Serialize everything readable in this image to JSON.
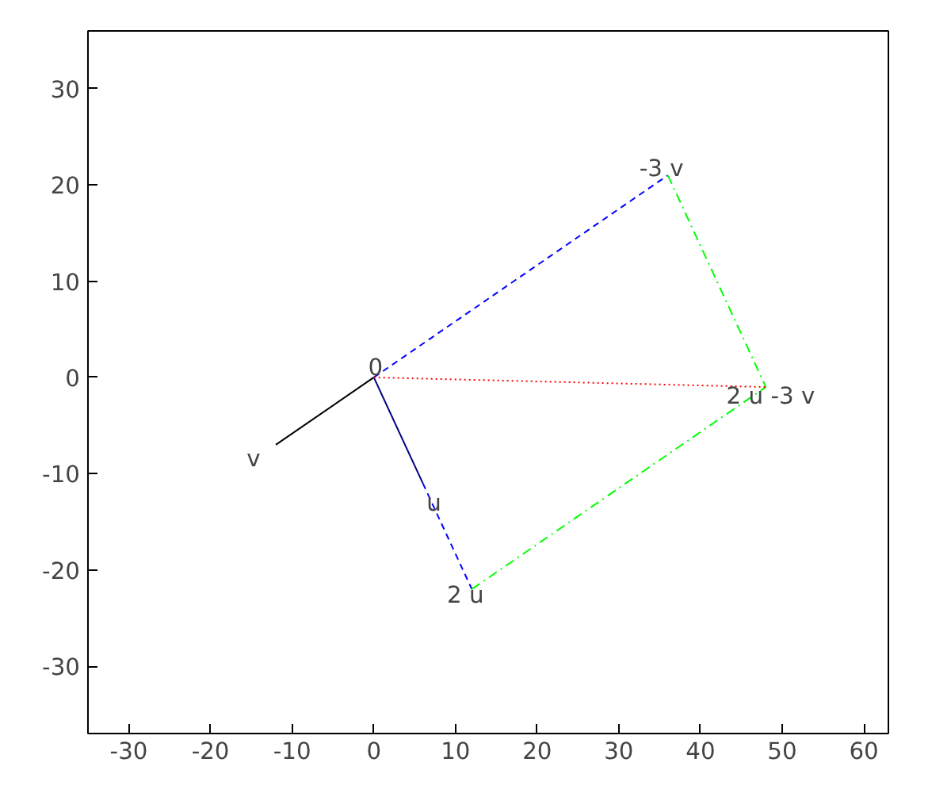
{
  "chart_data": {
    "type": "line",
    "xlim": [
      -35,
      63
    ],
    "ylim": [
      -37,
      36
    ],
    "xticks": [
      -30,
      -20,
      -10,
      0,
      10,
      20,
      30,
      40,
      50,
      60
    ],
    "yticks": [
      -30,
      -20,
      -10,
      0,
      10,
      20,
      30
    ],
    "grid": false,
    "series": [
      {
        "color": "#000000",
        "x": [
          0,
          -12
        ],
        "values": [
          0,
          -7
        ],
        "line_style": "solid"
      },
      {
        "color": "#000080",
        "x": [
          0,
          6
        ],
        "values": [
          0,
          -11
        ],
        "line_style": "solid"
      },
      {
        "color": "#0000ff",
        "x": [
          6,
          12
        ],
        "values": [
          -11,
          -22
        ],
        "line_style": "dashed"
      },
      {
        "color": "#0000ff",
        "x": [
          0,
          36
        ],
        "values": [
          0,
          21
        ],
        "line_style": "dashed"
      },
      {
        "color": "#00ff00",
        "x": [
          36,
          48
        ],
        "values": [
          21,
          -1
        ],
        "line_style": "dashdot"
      },
      {
        "color": "#00ff00",
        "x": [
          12,
          48
        ],
        "values": [
          -22,
          -1
        ],
        "line_style": "dashdot"
      },
      {
        "color": "#ff0000",
        "x": [
          0,
          48
        ],
        "values": [
          0,
          -1
        ],
        "line_style": "dotted"
      }
    ],
    "annotations": [
      {
        "text": "0",
        "x": 0,
        "y": 0
      },
      {
        "text": "v",
        "x": -12,
        "y": -7
      },
      {
        "text": "u",
        "x": 6,
        "y": -11
      },
      {
        "text": "2 u",
        "x": 12,
        "y": -22
      },
      {
        "text": "-3 v",
        "x": 36,
        "y": 21
      },
      {
        "text": "2 u -3 v",
        "x": 48,
        "y": -1
      }
    ]
  }
}
